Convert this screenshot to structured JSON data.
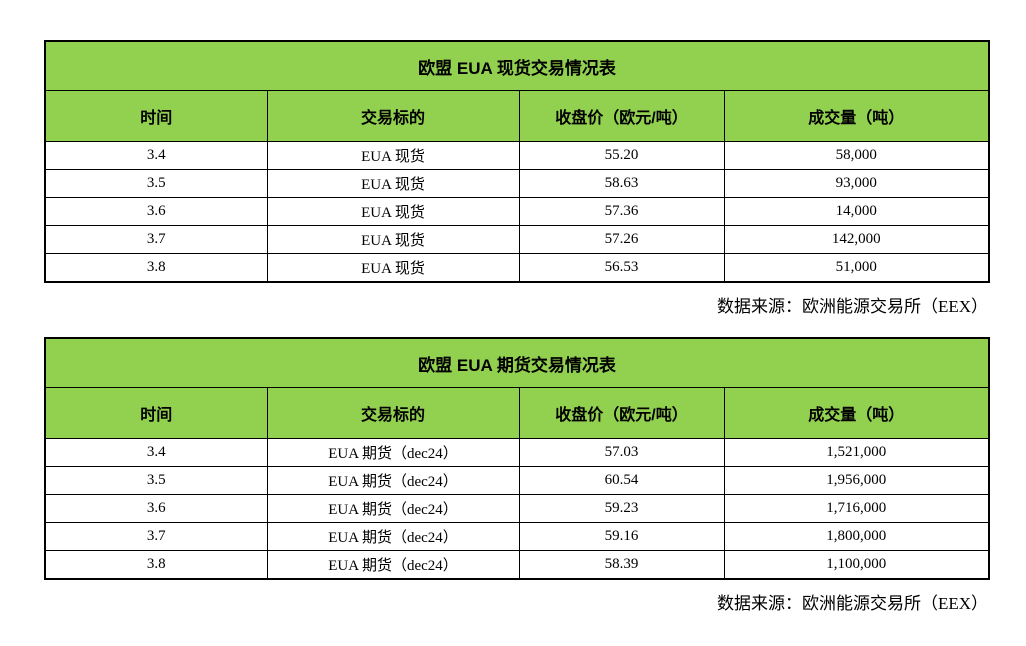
{
  "colors": {
    "header_green": "#92d050",
    "border": "#000000",
    "text": "#000000",
    "background": "#ffffff"
  },
  "tables": [
    {
      "title": "欧盟 EUA 现货交易情况表",
      "headers": [
        "时间",
        "交易标的",
        "收盘价（欧元/吨）",
        "成交量（吨）"
      ],
      "rows": [
        [
          "3.4",
          "EUA 现货",
          "55.20",
          "58,000"
        ],
        [
          "3.5",
          "EUA 现货",
          "58.63",
          "93,000"
        ],
        [
          "3.6",
          "EUA 现货",
          "57.36",
          "14,000"
        ],
        [
          "3.7",
          "EUA 现货",
          "57.26",
          "142,000"
        ],
        [
          "3.8",
          "EUA 现货",
          "56.53",
          "51,000"
        ]
      ],
      "source": "数据来源：欧洲能源交易所（EEX）"
    },
    {
      "title": "欧盟 EUA 期货交易情况表",
      "headers": [
        "时间",
        "交易标的",
        "收盘价（欧元/吨）",
        "成交量（吨）"
      ],
      "rows": [
        [
          "3.4",
          "EUA 期货（dec24）",
          "57.03",
          "1,521,000"
        ],
        [
          "3.5",
          "EUA 期货（dec24）",
          "60.54",
          "1,956,000"
        ],
        [
          "3.6",
          "EUA 期货（dec24）",
          "59.23",
          "1,716,000"
        ],
        [
          "3.7",
          "EUA 期货（dec24）",
          "59.16",
          "1,800,000"
        ],
        [
          "3.8",
          "EUA 期货（dec24）",
          "58.39",
          "1,100,000"
        ]
      ],
      "source": "数据来源：欧洲能源交易所（EEX）"
    }
  ]
}
